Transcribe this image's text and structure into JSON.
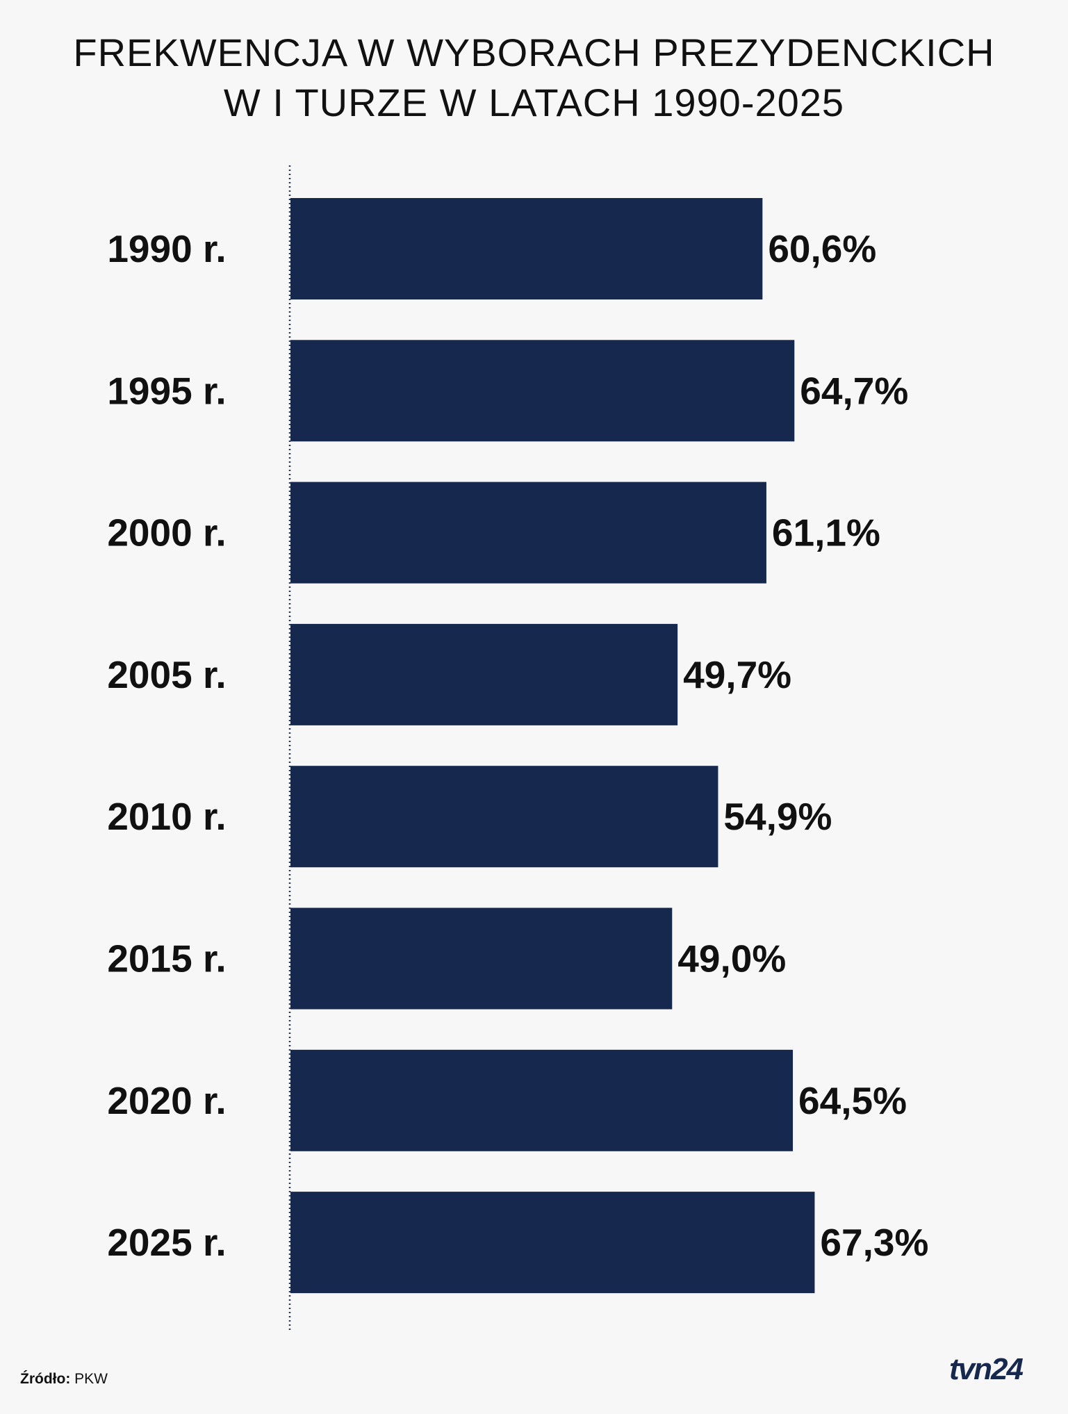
{
  "title": {
    "line1": "FREKWENCJA W WYBORACH PREZYDENCKICH",
    "line2": "W I TURZE W LATACH 1990-2025"
  },
  "source": {
    "label": "Źródło:",
    "value": "PKW"
  },
  "logo": {
    "text": "tvn24"
  },
  "colors": {
    "bar": "#17284e",
    "background": "#f7f7f7",
    "text": "#111111",
    "axis": "#2a3350"
  },
  "chart_data": {
    "type": "bar",
    "orientation": "horizontal",
    "categories": [
      "1990 r.",
      "1995 r.",
      "2000 r.",
      "2005 r.",
      "2010 r.",
      "2015 r.",
      "2020 r.",
      "2025 r."
    ],
    "values": [
      60.6,
      64.7,
      61.1,
      49.7,
      54.9,
      49.0,
      64.5,
      67.3
    ],
    "value_labels": [
      "60,6%",
      "64,7%",
      "61,1%",
      "49,7%",
      "54,9%",
      "49,0%",
      "64,5%",
      "67,3%"
    ],
    "xlim": [
      0,
      100
    ],
    "grid": false,
    "legend": "none",
    "baseline": "dotted"
  }
}
